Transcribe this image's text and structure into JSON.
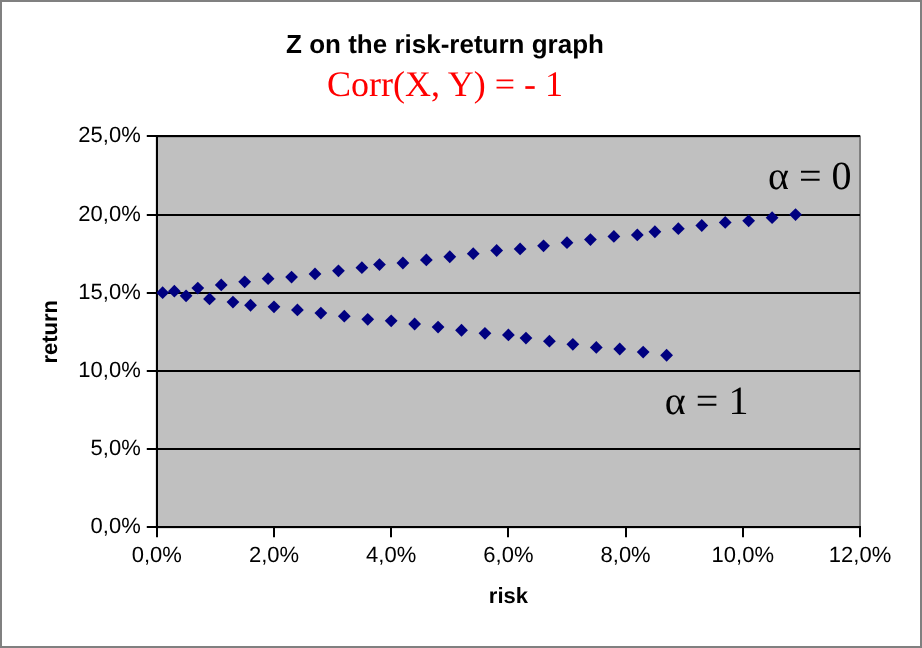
{
  "chart_data": {
    "type": "scatter",
    "title": "Z on the risk-return graph",
    "subtitle": "Corr(X, Y) = - 1",
    "xlabel": "risk",
    "ylabel": "return",
    "x": [
      10.9,
      10.5,
      10.1,
      9.7,
      9.3,
      8.9,
      8.5,
      8.2,
      7.8,
      7.4,
      7.0,
      6.6,
      6.2,
      5.8,
      5.4,
      5.0,
      4.6,
      4.2,
      3.8,
      3.5,
      3.1,
      2.7,
      2.3,
      1.9,
      1.5,
      1.1,
      0.7,
      0.3,
      0.1,
      0.5,
      0.9,
      1.3,
      1.6,
      2.0,
      2.4,
      2.8,
      3.2,
      3.6,
      4.0,
      4.4,
      4.8,
      5.2,
      5.6,
      6.0,
      6.3,
      6.7,
      7.1,
      7.5,
      7.9,
      8.3,
      8.7
    ],
    "series": [
      {
        "color": "#000080",
        "values": [
          20,
          19.8,
          19.6,
          19.5,
          19.3,
          19.1,
          18.9,
          18.7,
          18.6,
          18.4,
          18.2,
          18.0,
          17.8,
          17.7,
          17.5,
          17.3,
          17.1,
          16.9,
          16.8,
          16.6,
          16.4,
          16.2,
          16.0,
          15.9,
          15.7,
          15.5,
          15.3,
          15.1,
          15.0,
          14.8,
          14.6,
          14.4,
          14.2,
          14.1,
          13.9,
          13.7,
          13.5,
          13.3,
          13.2,
          13.0,
          12.8,
          12.6,
          12.4,
          12.3,
          12.1,
          11.9,
          11.7,
          11.5,
          11.4,
          11.2,
          11
        ]
      }
    ],
    "xlim": [
      0,
      12
    ],
    "xticks": [
      {
        "value": 0,
        "label": "0,0%"
      },
      {
        "value": 2,
        "label": "2,0%"
      },
      {
        "value": 4,
        "label": "4,0%"
      },
      {
        "value": 6,
        "label": "6,0%"
      },
      {
        "value": 8,
        "label": "8,0%"
      },
      {
        "value": 10,
        "label": "10,0%"
      },
      {
        "value": 12,
        "label": "12,0%"
      }
    ],
    "ylim": [
      0,
      25
    ],
    "yticks": [
      {
        "value": 0,
        "label": "0,0%"
      },
      {
        "value": 5,
        "label": "5,0%"
      },
      {
        "value": 10,
        "label": "10,0%"
      },
      {
        "value": 15,
        "label": "15,0%"
      },
      {
        "value": 20,
        "label": "20,0%"
      },
      {
        "value": 25,
        "label": "25,0%"
      }
    ],
    "annotations": [
      {
        "text": "α = 0",
        "x": 10.9,
        "y": 20
      },
      {
        "text": "α = 1",
        "x": 8.7,
        "y": 11
      }
    ],
    "grid": "y",
    "legend": false,
    "marker": "diamond"
  }
}
